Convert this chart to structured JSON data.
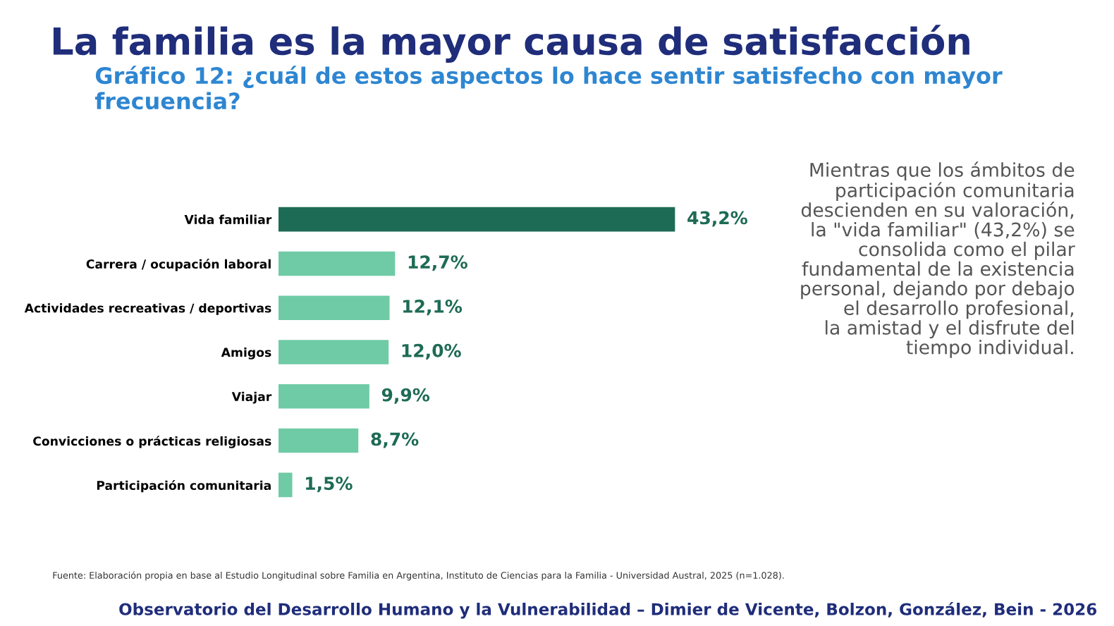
{
  "chart_data": {
    "type": "bar",
    "orientation": "horizontal",
    "title": "La familia es la mayor causa de satisfacción",
    "subtitle": "Gráfico 12: ¿cuál de estos aspectos lo hace sentir satisfecho con mayor frecuencia?",
    "categories": [
      "Vida familiar",
      "Carrera / ocupación laboral",
      "Actividades recreativas / deportivas",
      "Amigos",
      "Viajar",
      "Convicciones o prácticas religiosas",
      "Participación comunitaria"
    ],
    "values": [
      43.2,
      12.7,
      12.1,
      12.0,
      9.9,
      8.7,
      1.5
    ],
    "colors": [
      "#1e6b55",
      "#6fcba5",
      "#6fcba5",
      "#6fcba5",
      "#6fcba5",
      "#6fcba5",
      "#6fcba5"
    ],
    "value_labels": [
      "43,2%",
      "12,7%",
      "12,1%",
      "12,0%",
      "9,9%",
      "8,7%",
      "1,5%"
    ],
    "annotations": [
      "Mientras que los ámbitos de\nparticipación comunitaria\ndescienden en su valoración,\nla \"vida familiar\" (43,2%) se\nconsolida como el pilar\nfundamental de la existencia\npersonal, dejando por debajo\nel desarrollo profesional,\nla amistad y el disfrute del\ntiempo individual.",
      "Fuente: Elaboración propia en base al Estudio Longitudinal sobre Familia en Argentina, Instituto de Ciencias para la Familia - Universidad Austral, 2025 (n=1.028).",
      "Observatorio del Desarrollo Humano y la Vulnerabilidad – Dimier de Vicente, Bolzon, González, Bein - 2026"
    ]
  }
}
